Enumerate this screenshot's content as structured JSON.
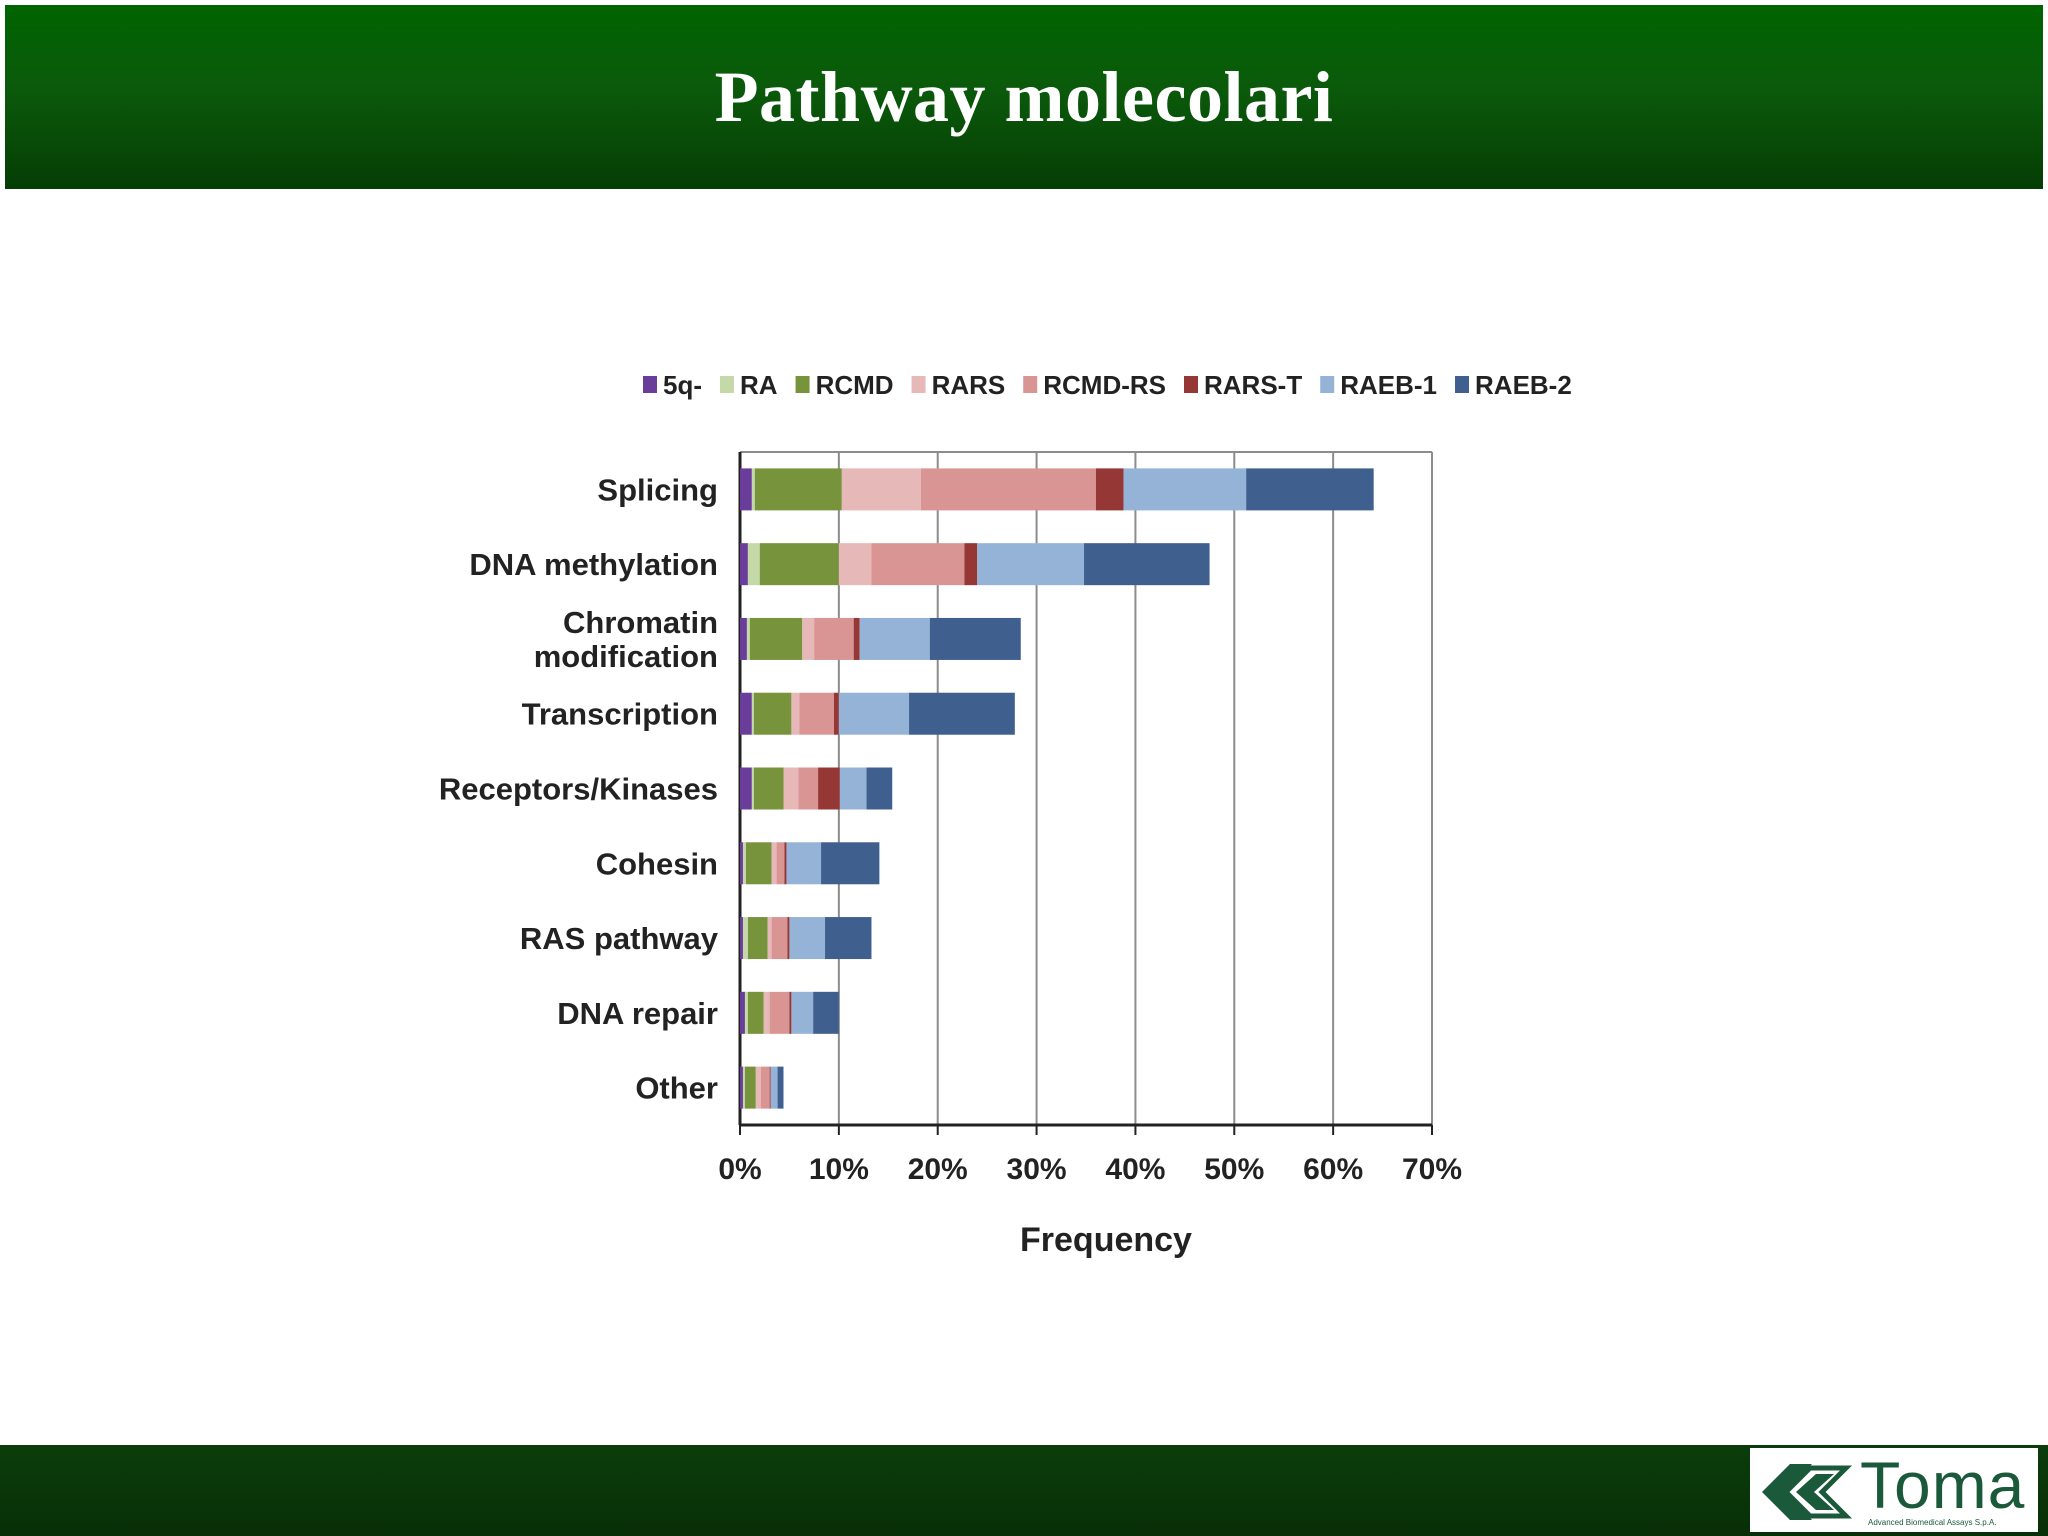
{
  "slide": {
    "title": "Pathway molecolari"
  },
  "logo": {
    "name": "Toma",
    "tagline": "Advanced Biomedical Assays S.p.A."
  },
  "colors": {
    "header_green": "#006400",
    "footer_green": "#0b3d0b"
  },
  "chart_data": {
    "type": "bar",
    "orientation": "horizontal",
    "stacked": true,
    "title": "",
    "xlabel": "Frequency",
    "ylabel": "",
    "xlim": [
      0,
      70
    ],
    "x_ticks": [
      "0%",
      "10%",
      "20%",
      "30%",
      "40%",
      "50%",
      "60%",
      "70%"
    ],
    "grid": "vertical",
    "legend_position": "top",
    "categories": [
      "Splicing",
      "DNA methylation",
      "Chromatin modification",
      "Transcription",
      "Receptors/Kinases",
      "Cohesin",
      "RAS pathway",
      "DNA repair",
      "Other"
    ],
    "series": [
      {
        "name": "5q-",
        "color": "#6a3d9a",
        "values": [
          1.2,
          0.8,
          0.7,
          1.2,
          1.2,
          0.3,
          0.3,
          0.5,
          0.3
        ]
      },
      {
        "name": "RA",
        "color": "#c5d9a8",
        "values": [
          0.3,
          1.2,
          0.3,
          0.2,
          0.2,
          0.3,
          0.5,
          0.3,
          0.2
        ]
      },
      {
        "name": "RCMD",
        "color": "#77933c",
        "values": [
          8.8,
          8.0,
          5.3,
          3.8,
          3.0,
          2.6,
          2.0,
          1.6,
          1.1
        ]
      },
      {
        "name": "RARS",
        "color": "#e6b9b8",
        "values": [
          8.0,
          3.3,
          1.2,
          0.8,
          1.5,
          0.5,
          0.4,
          0.6,
          0.5
        ]
      },
      {
        "name": "RCMD-RS",
        "color": "#d99594",
        "values": [
          17.7,
          9.4,
          4.0,
          3.5,
          2.0,
          0.8,
          1.6,
          2.0,
          0.9
        ]
      },
      {
        "name": "RARS-T",
        "color": "#953735",
        "values": [
          2.8,
          1.3,
          0.6,
          0.5,
          2.2,
          0.2,
          0.2,
          0.2,
          0.1
        ]
      },
      {
        "name": "RAEB-1",
        "color": "#95b3d7",
        "values": [
          12.4,
          10.8,
          7.1,
          7.1,
          2.7,
          3.5,
          3.6,
          2.2,
          0.7
        ]
      },
      {
        "name": "RAEB-2",
        "color": "#3f5f8f",
        "values": [
          12.9,
          12.7,
          9.2,
          10.7,
          2.6,
          5.9,
          4.7,
          2.6,
          0.6
        ]
      }
    ]
  }
}
